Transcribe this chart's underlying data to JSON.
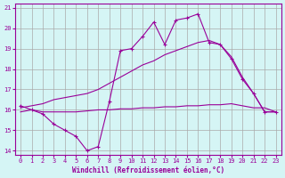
{
  "xlabel": "Windchill (Refroidissement éolien,°C)",
  "x": [
    0,
    1,
    2,
    3,
    4,
    5,
    6,
    7,
    8,
    9,
    10,
    11,
    12,
    13,
    14,
    15,
    16,
    17,
    18,
    19,
    20,
    21,
    22,
    23
  ],
  "line_jagged": [
    16.2,
    16.0,
    15.8,
    15.3,
    15.0,
    14.7,
    14.0,
    14.2,
    16.4,
    18.9,
    19.0,
    19.6,
    20.3,
    19.2,
    20.4,
    20.5,
    20.7,
    19.3,
    19.2,
    18.5,
    17.5,
    16.8,
    15.9,
    15.9
  ],
  "line_upper": [
    16.1,
    16.2,
    16.3,
    16.5,
    16.6,
    16.7,
    16.8,
    17.0,
    17.3,
    17.6,
    17.9,
    18.2,
    18.4,
    18.7,
    18.9,
    19.1,
    19.3,
    19.4,
    19.2,
    18.6,
    17.6,
    16.8,
    15.9,
    15.9
  ],
  "line_lower": [
    15.9,
    16.0,
    15.9,
    15.9,
    15.9,
    15.9,
    15.95,
    16.0,
    16.0,
    16.05,
    16.05,
    16.1,
    16.1,
    16.15,
    16.15,
    16.2,
    16.2,
    16.25,
    16.25,
    16.3,
    16.2,
    16.1,
    16.1,
    15.9
  ],
  "color": "#990099",
  "bg_color": "#d5f5f5",
  "grid_color": "#aaaaaa",
  "ylim": [
    13.8,
    21.2
  ],
  "xlim": [
    -0.5,
    23.5
  ],
  "yticks": [
    14,
    15,
    16,
    17,
    18,
    19,
    20,
    21
  ],
  "xticks": [
    0,
    1,
    2,
    3,
    4,
    5,
    6,
    7,
    8,
    9,
    10,
    11,
    12,
    13,
    14,
    15,
    16,
    17,
    18,
    19,
    20,
    21,
    22,
    23
  ]
}
